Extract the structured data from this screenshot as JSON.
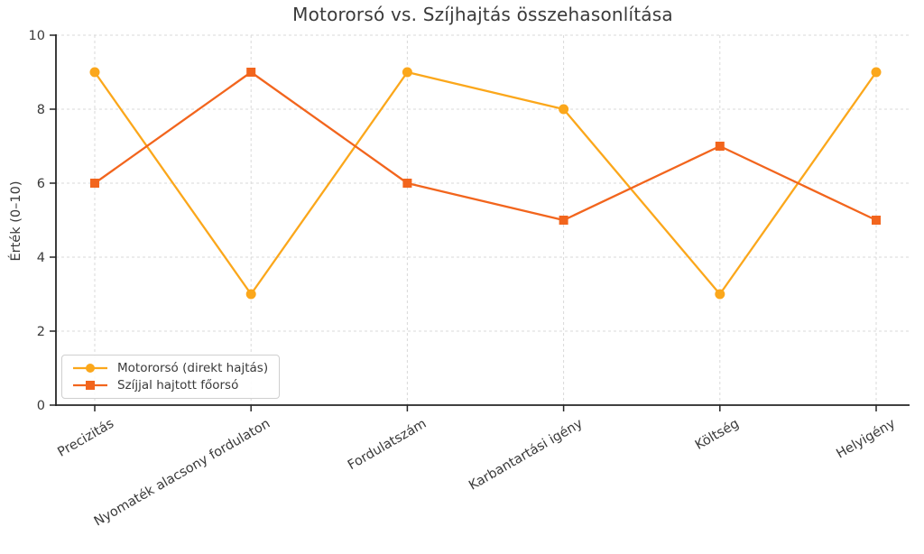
{
  "chart_data": {
    "type": "line",
    "title": "Motororsó vs. Szíjhajtás összehasonlítása",
    "xlabel": "",
    "ylabel": "Érték (0–10)",
    "categories": [
      "Precizitás",
      "Nyomaték alacsony fordulaton",
      "Fordulatszám",
      "Karbantartási igény",
      "Költség",
      "Helyigény"
    ],
    "series": [
      {
        "name": "Motororsó (direkt hajtás)",
        "values": [
          9,
          3,
          9,
          8,
          3,
          9
        ],
        "color": "#FBA71B",
        "marker": "circle"
      },
      {
        "name": "Szíjjal hajtott főorsó",
        "values": [
          6,
          9,
          6,
          5,
          7,
          5
        ],
        "color": "#F2651D",
        "marker": "square"
      }
    ],
    "ylim": [
      0,
      10
    ],
    "yticks": [
      0,
      2,
      4,
      6,
      8,
      10
    ],
    "grid": true,
    "grid_style": "dashed",
    "x_tick_rotation_deg": 30,
    "legend_position": "lower-left",
    "colors": {
      "axis": "#262626",
      "grid": "#d9d9d9",
      "text": "#3a3a3a",
      "background": "#ffffff",
      "legend_border": "#cfcfcf"
    }
  }
}
